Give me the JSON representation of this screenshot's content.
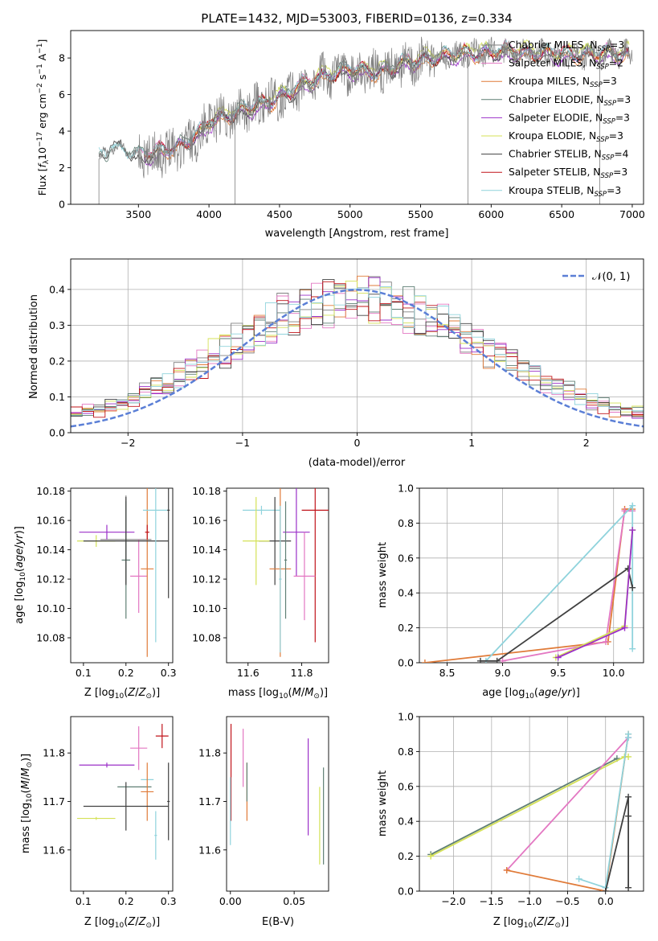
{
  "figure": {
    "title": "PLATE=1432, MJD=53003, FIBERID=0136, z=0.334"
  },
  "colors": {
    "chabrier_miles": "#808080",
    "salpeter_miles": "#e377c2",
    "kroupa_miles": "#e07b39",
    "chabrier_elodie": "#5f7f74",
    "salpeter_elodie": "#9b30c8",
    "kroupa_elodie": "#d4e157",
    "chabrier_stelib": "#404040",
    "salpeter_stelib": "#c0141a",
    "kroupa_stelib": "#8fd3dc",
    "normal": "#5b7fd6"
  },
  "chart_data": [
    {
      "id": "spectrum",
      "type": "line",
      "xlabel": "wavelength [Angstrom, rest frame]",
      "ylabel": "Flux [f_λ 10^-17 erg cm^-2 s^-1 A^-1]",
      "xlim": [
        3020,
        7080
      ],
      "ylim": [
        0,
        9.5
      ],
      "xticks": [
        "3500",
        "4000",
        "4500",
        "5000",
        "5500",
        "6000",
        "6500",
        "7000"
      ],
      "yticks": [
        "0",
        "2",
        "4",
        "6",
        "8"
      ],
      "legend_position": "top-right",
      "series": [
        {
          "name": "Chabrier MILES, N_SSP=3",
          "color_key": "chabrier_miles"
        },
        {
          "name": "Salpeter MILES, N_SSP=2",
          "color_key": "salpeter_miles"
        },
        {
          "name": "Kroupa MILES, N_SSP=3",
          "color_key": "kroupa_miles"
        },
        {
          "name": "Chabrier ELODIE, N_SSP=3",
          "color_key": "chabrier_elodie"
        },
        {
          "name": "Salpeter ELODIE, N_SSP=3",
          "color_key": "salpeter_elodie"
        },
        {
          "name": "Kroupa ELODIE, N_SSP=3",
          "color_key": "kroupa_elodie"
        },
        {
          "name": "Chabrier STELIB, N_SSP=4",
          "color_key": "chabrier_stelib"
        },
        {
          "name": "Salpeter STELIB, N_SSP=3",
          "color_key": "salpeter_stelib"
        },
        {
          "name": "Kroupa STELIB, N_SSP=3",
          "color_key": "kroupa_stelib"
        }
      ],
      "continuum_knots": {
        "x": [
          3220,
          3280,
          3300,
          3400,
          3500,
          3600,
          3700,
          3850,
          3950,
          4000,
          4200,
          4400,
          4600,
          4800,
          5000,
          5200,
          5400,
          5600,
          5800,
          6000,
          6200,
          6400,
          6600,
          6800,
          7000
        ],
        "y": [
          2.5,
          2.7,
          3.2,
          3.0,
          2.6,
          2.7,
          3.0,
          3.4,
          3.9,
          4.5,
          5.0,
          5.5,
          6.2,
          7.0,
          7.3,
          7.2,
          7.7,
          8.0,
          8.2,
          8.3,
          8.3,
          8.2,
          8.2,
          8.2,
          8.2
        ]
      }
    },
    {
      "id": "residuals",
      "type": "line",
      "xlabel": "(data-model)/error",
      "ylabel": "Normed distribution",
      "xlim": [
        -2.5,
        2.5
      ],
      "ylim": [
        0,
        0.485
      ],
      "xticks": [
        "−2",
        "−1",
        "0",
        "1",
        "2"
      ],
      "yticks": [
        "0.0",
        "0.1",
        "0.2",
        "0.3",
        "0.4"
      ],
      "grid": true,
      "legend_position": "top-right",
      "normal_label": "𝒩(0, 1)",
      "bins": 50
    },
    {
      "id": "age_vs_Z",
      "type": "scatter",
      "xlabel": "Z [log10(Z/Z⊙)]",
      "ylabel": "age [log10(age/yr)]",
      "xlim": [
        0.07,
        0.31
      ],
      "ylim": [
        10.063,
        10.182
      ],
      "xticks": [
        "0.1",
        "0.2",
        "0.3"
      ],
      "yticks": [
        "10.08",
        "10.10",
        "10.12",
        "10.14",
        "10.16",
        "10.18"
      ],
      "points": [
        {
          "c": "chabrier_miles",
          "x": 0.2,
          "y": 10.147,
          "xe": 0.06,
          "ye": 0.03
        },
        {
          "c": "salpeter_miles",
          "x": 0.23,
          "y": 10.122,
          "xe": 0.02,
          "ye": 0.025
        },
        {
          "c": "kroupa_miles",
          "x": 0.25,
          "y": 10.127,
          "xe": 0.015,
          "ye": 0.06
        },
        {
          "c": "chabrier_elodie",
          "x": 0.2,
          "y": 10.133,
          "xe": 0.01,
          "ye": 0.04
        },
        {
          "c": "salpeter_elodie",
          "x": 0.155,
          "y": 10.152,
          "xe": 0.065,
          "ye": 0.005
        },
        {
          "c": "kroupa_elodie",
          "x": 0.13,
          "y": 10.146,
          "xe": 0.045,
          "ye": 0.004
        },
        {
          "c": "chabrier_stelib",
          "x": 0.2,
          "y": 10.146,
          "xe": 0.1,
          "ye": 0.03
        },
        {
          "c": "salpeter_stelib",
          "x": 0.25,
          "y": 10.152,
          "xe": 0.005,
          "ye": 0.005
        },
        {
          "c": "kroupa_stelib",
          "x": 0.27,
          "y": 10.167,
          "xe": 0.03,
          "ye": 0.09
        },
        {
          "c": "chabrier_stelib",
          "x": 0.3,
          "y": 10.167,
          "xe": 0.003,
          "ye": 0.06
        }
      ]
    },
    {
      "id": "age_vs_mass",
      "type": "scatter",
      "xlabel": "mass [log10(M/M⊙)]",
      "ylabel": "",
      "xlim": [
        11.52,
        11.9
      ],
      "ylim": [
        10.063,
        10.182
      ],
      "xticks": [
        "11.6",
        "11.8"
      ],
      "yticks": [
        "10.08",
        "10.10",
        "10.12",
        "10.14",
        "10.16",
        "10.18"
      ],
      "points": [
        {
          "c": "kroupa_stelib",
          "x": 11.65,
          "y": 10.167,
          "xe": 0.07,
          "ye": 0.003
        },
        {
          "c": "salpeter_stelib",
          "x": 11.85,
          "y": 10.167,
          "xe": 0.05,
          "ye": 0.09
        },
        {
          "c": "chabrier_stelib",
          "x": 11.7,
          "y": 10.146,
          "xe": 0.06,
          "ye": 0.03
        },
        {
          "c": "kroupa_elodie",
          "x": 11.63,
          "y": 10.146,
          "xe": 0.05,
          "ye": 0.03
        },
        {
          "c": "salpeter_elodie",
          "x": 11.78,
          "y": 10.152,
          "xe": 0.05,
          "ye": 0.03
        },
        {
          "c": "kroupa_miles",
          "x": 11.72,
          "y": 10.127,
          "xe": 0.04,
          "ye": 0.06
        },
        {
          "c": "salpeter_miles",
          "x": 11.81,
          "y": 10.122,
          "xe": 0.04,
          "ye": 0.03
        },
        {
          "c": "chabrier_elodie",
          "x": 11.74,
          "y": 10.133,
          "xe": 0.005,
          "ye": 0.04
        },
        {
          "c": "kroupa_stelib",
          "x": 11.72,
          "y": 10.12,
          "xe": 0.005,
          "ye": 0.05
        }
      ]
    },
    {
      "id": "massweight_vs_age",
      "type": "line",
      "xlabel": "age [log10(age/yr)]",
      "ylabel": "mass weight",
      "xlim": [
        8.25,
        10.27
      ],
      "ylim": [
        0,
        1.0
      ],
      "xticks": [
        "8.5",
        "9.0",
        "9.5",
        "10.0"
      ],
      "yticks": [
        "0.0",
        "0.2",
        "0.4",
        "0.6",
        "0.8",
        "1.0"
      ],
      "grid": true,
      "series": [
        {
          "c": "kroupa_miles",
          "x": [
            8.3,
            9.95,
            10.1,
            10.17
          ],
          "y": [
            0.0,
            0.12,
            0.88,
            0.88
          ]
        },
        {
          "c": "salpeter_miles",
          "x": [
            9.0,
            9.93,
            10.1,
            10.17
          ],
          "y": [
            0.01,
            0.12,
            0.87,
            0.87
          ]
        },
        {
          "c": "kroupa_stelib",
          "x": [
            8.85,
            10.17,
            10.17
          ],
          "y": [
            0.01,
            0.9,
            0.08
          ]
        },
        {
          "c": "chabrier_stelib",
          "x": [
            8.8,
            8.95,
            10.13,
            10.17
          ],
          "y": [
            0.01,
            0.01,
            0.54,
            0.43
          ]
        },
        {
          "c": "kroupa_elodie",
          "x": [
            9.48,
            10.1,
            10.17
          ],
          "y": [
            0.03,
            0.21,
            0.76
          ]
        },
        {
          "c": "salpeter_elodie",
          "x": [
            9.5,
            10.1,
            10.17
          ],
          "y": [
            0.03,
            0.2,
            0.76
          ]
        }
      ]
    },
    {
      "id": "mass_vs_Z",
      "type": "scatter",
      "xlabel": "Z [log10(Z/Z⊙)]",
      "ylabel": "mass [log10(M/M⊙)]",
      "xlim": [
        0.07,
        0.31
      ],
      "ylim": [
        11.515,
        11.875
      ],
      "xticks": [
        "0.1",
        "0.2",
        "0.3"
      ],
      "yticks": [
        "11.6",
        "11.7",
        "11.8"
      ],
      "points": [
        {
          "c": "salpeter_stelib",
          "x": 0.285,
          "y": 11.835,
          "xe": 0.015,
          "ye": 0.025
        },
        {
          "c": "salpeter_miles",
          "x": 0.23,
          "y": 11.81,
          "xe": 0.02,
          "ye": 0.045
        },
        {
          "c": "salpeter_elodie",
          "x": 0.155,
          "y": 11.775,
          "xe": 0.065,
          "ye": 0.005
        },
        {
          "c": "kroupa_stelib",
          "x": 0.25,
          "y": 11.745,
          "xe": 0.015,
          "ye": 0.0
        },
        {
          "c": "chabrier_elodie",
          "x": 0.22,
          "y": 11.73,
          "xe": 0.04,
          "ye": 0.0
        },
        {
          "c": "kroupa_miles",
          "x": 0.25,
          "y": 11.72,
          "xe": 0.015,
          "ye": 0.06
        },
        {
          "c": "chabrier_stelib",
          "x": 0.2,
          "y": 11.69,
          "xe": 0.1,
          "ye": 0.05
        },
        {
          "c": "kroupa_elodie",
          "x": 0.13,
          "y": 11.665,
          "xe": 0.045,
          "ye": 0.003
        },
        {
          "c": "kroupa_stelib",
          "x": 0.27,
          "y": 11.63,
          "xe": 0.003,
          "ye": 0.05
        },
        {
          "c": "chabrier_stelib",
          "x": 0.3,
          "y": 11.7,
          "xe": 0.003,
          "ye": 0.08
        }
      ]
    },
    {
      "id": "mass_vs_ebv",
      "type": "scatter",
      "xlabel": "E(B-V)",
      "ylabel": "",
      "xlim": [
        -0.003,
        0.077
      ],
      "ylim": [
        11.515,
        11.875
      ],
      "xticks": [
        "0.00",
        "0.05"
      ],
      "yticks": [
        "11.6",
        "11.7",
        "11.8"
      ],
      "points": [
        {
          "c": "salpeter_stelib",
          "x": 0.0005,
          "y": 11.76,
          "ye": 0.1
        },
        {
          "c": "kroupa_stelib",
          "x": 0.0,
          "y": 11.68,
          "ye": 0.07
        },
        {
          "c": "salpeter_miles",
          "x": 0.01,
          "y": 11.79,
          "ye": 0.06
        },
        {
          "c": "kroupa_miles",
          "x": 0.013,
          "y": 11.72,
          "ye": 0.06
        },
        {
          "c": "chabrier_elodie",
          "x": 0.013,
          "y": 11.74,
          "ye": 0.04
        },
        {
          "c": "salpeter_elodie",
          "x": 0.061,
          "y": 11.73,
          "ye": 0.1
        },
        {
          "c": "kroupa_elodie",
          "x": 0.07,
          "y": 11.65,
          "ye": 0.08
        },
        {
          "c": "chabrier_elodie",
          "x": 0.073,
          "y": 11.67,
          "ye": 0.1
        }
      ]
    },
    {
      "id": "massweight_vs_Z",
      "type": "line",
      "xlabel": "Z [log10(Z/Z⊙)]",
      "ylabel": "mass weight",
      "xlim": [
        -2.45,
        0.5
      ],
      "ylim": [
        0,
        1.0
      ],
      "xticks": [
        "−2.0",
        "−1.5",
        "−1.0",
        "−0.5",
        "0.0"
      ],
      "yticks": [
        "0.0",
        "0.2",
        "0.4",
        "0.6",
        "0.8",
        "1.0"
      ],
      "grid": true,
      "series": [
        {
          "c": "chabrier_elodie",
          "x": [
            -2.3,
            0.15
          ],
          "y": [
            0.21,
            0.76
          ]
        },
        {
          "c": "kroupa_elodie",
          "x": [
            -2.3,
            0.25,
            0.3
          ],
          "y": [
            0.2,
            0.77,
            0.77
          ]
        },
        {
          "c": "salpeter_miles",
          "x": [
            -1.3,
            0.3
          ],
          "y": [
            0.12,
            0.88
          ]
        },
        {
          "c": "kroupa_miles",
          "x": [
            -1.3,
            0.0,
            0.3
          ],
          "y": [
            0.12,
            0.0,
            0.9
          ]
        },
        {
          "c": "kroupa_stelib",
          "x": [
            -0.35,
            0.0,
            0.3,
            0.3
          ],
          "y": [
            0.07,
            0.02,
            0.9,
            0.88
          ]
        },
        {
          "c": "chabrier_stelib",
          "x": [
            0.0,
            0.3,
            0.3,
            0.3
          ],
          "y": [
            0.0,
            0.54,
            0.43,
            0.02
          ]
        }
      ]
    }
  ]
}
